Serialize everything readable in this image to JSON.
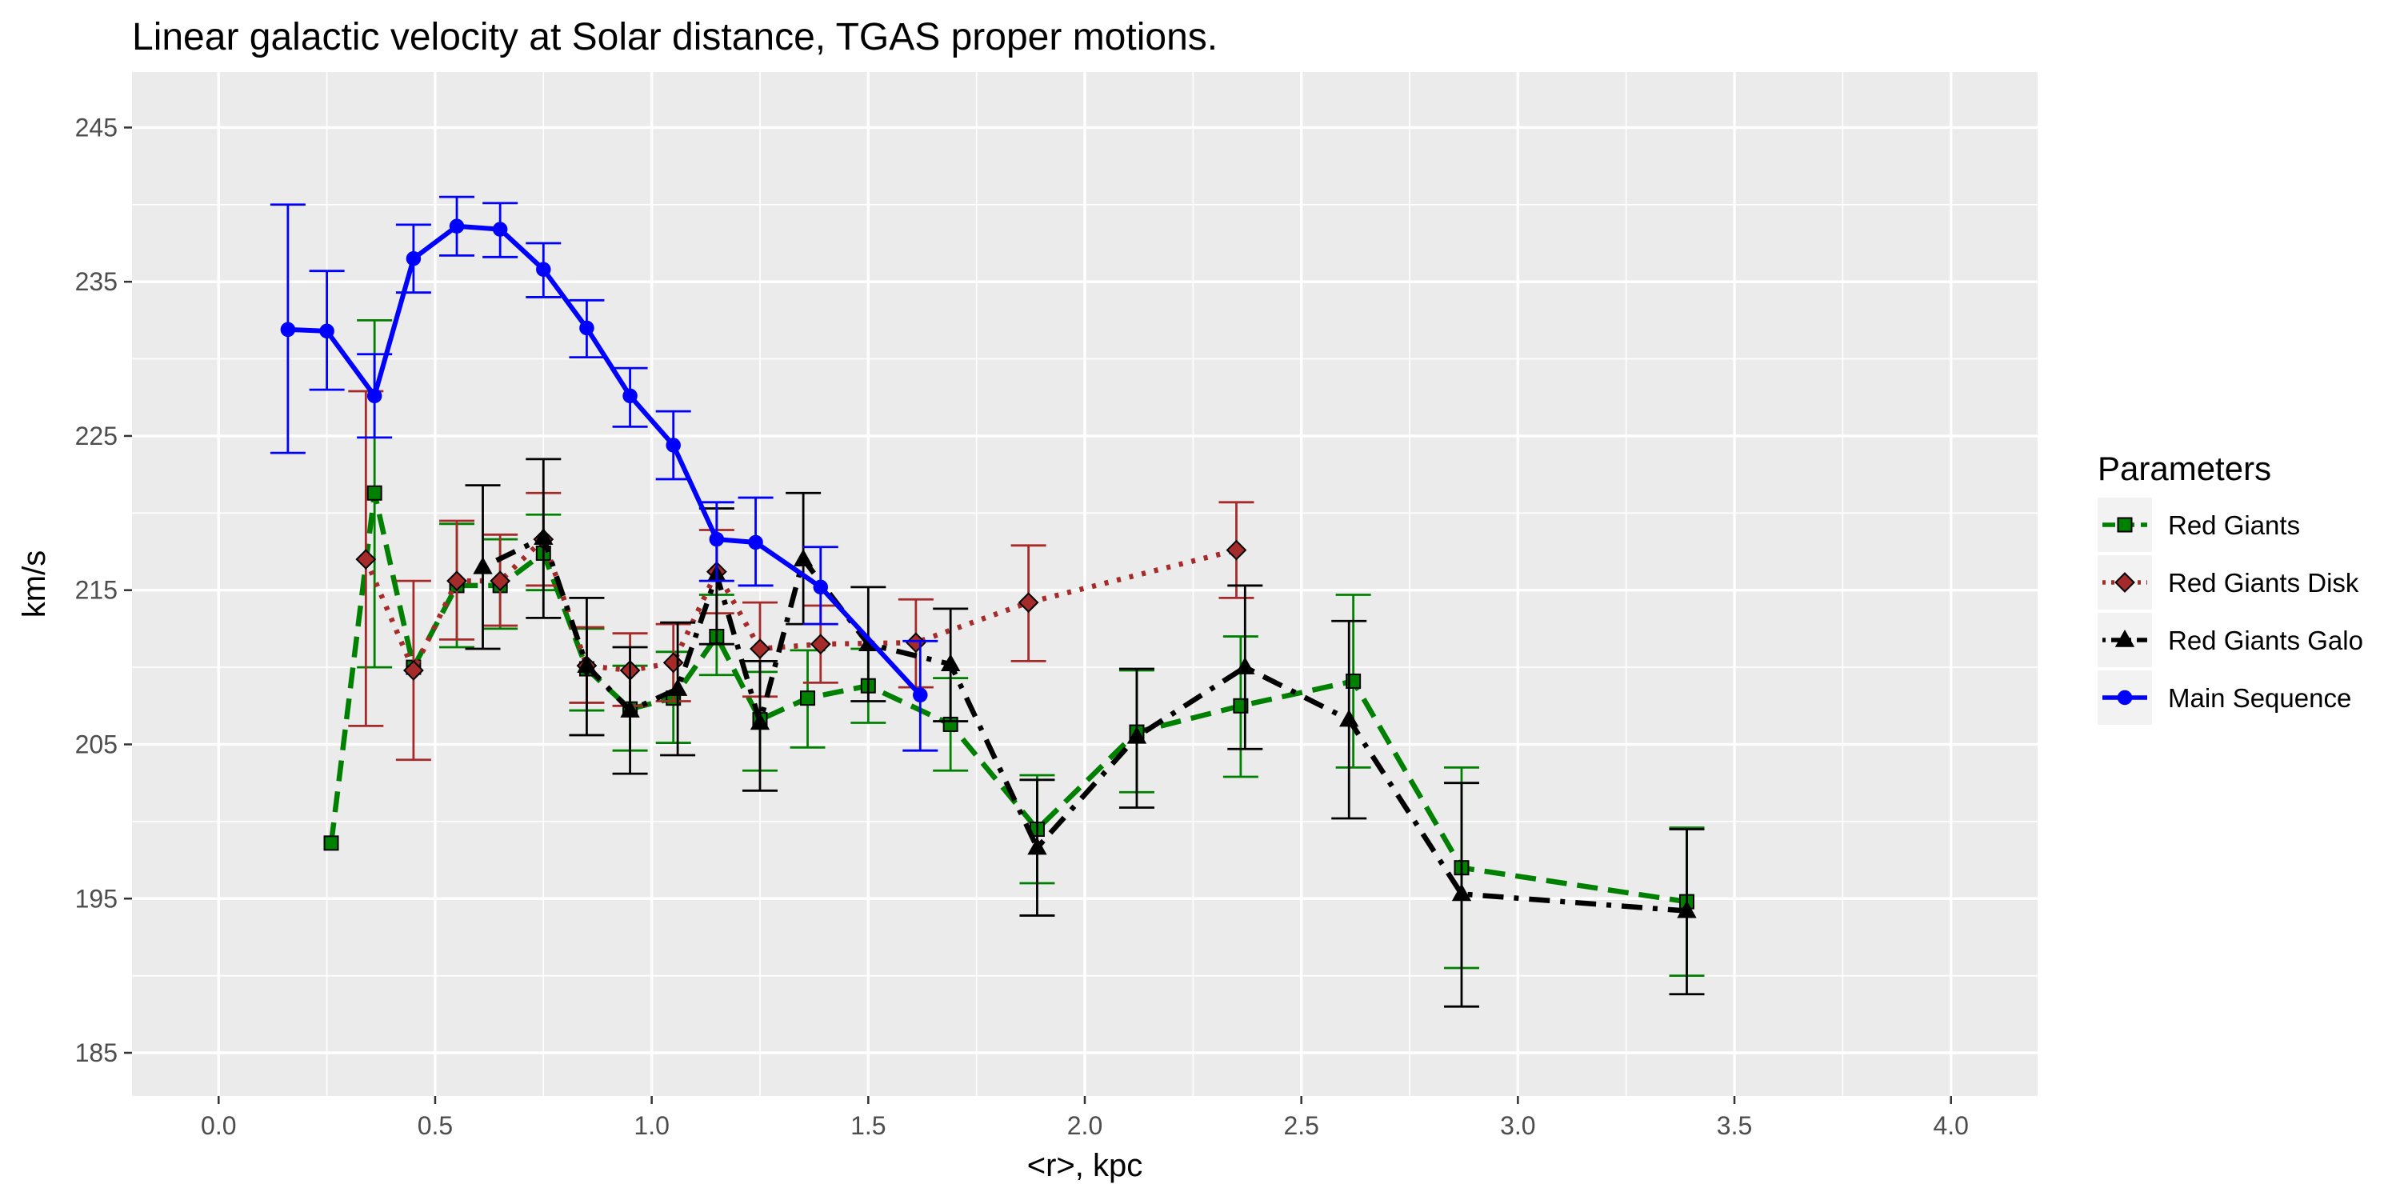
{
  "chart_data": {
    "type": "line",
    "title": "Linear galactic velocity at Solar distance,  TGAS  proper motions.",
    "xlabel": "<r>, kpc",
    "ylabel": "km/s",
    "xlim": [
      -0.2,
      4.2
    ],
    "ylim": [
      182.2,
      248.6
    ],
    "xticks": [
      0.0,
      0.5,
      1.0,
      1.5,
      2.0,
      2.5,
      3.0,
      3.5,
      4.0
    ],
    "xtick_labels": [
      "0.0",
      "0.5",
      "1.0",
      "1.5",
      "2.0",
      "2.5",
      "3.0",
      "3.5",
      "4.0"
    ],
    "yticks": [
      185,
      195,
      205,
      215,
      225,
      235,
      245
    ],
    "ytick_labels": [
      "185",
      "195",
      "205",
      "215",
      "225",
      "235",
      "245"
    ],
    "grid": true,
    "background": "#ebebeb",
    "legend": {
      "title": "Parameters",
      "position": "right"
    },
    "series": [
      {
        "name": "Red Giants",
        "color": "#008000",
        "linestyle": "dashed",
        "marker": "square",
        "points": [
          {
            "x": 0.26,
            "y": 198.6,
            "lo": 198.6,
            "hi": 198.6
          },
          {
            "x": 0.36,
            "y": 221.3,
            "lo": 210.0,
            "hi": 232.5
          },
          {
            "x": 0.45,
            "y": 210.0,
            "lo": 210.0,
            "hi": 210.0
          },
          {
            "x": 0.55,
            "y": 215.3,
            "lo": 211.3,
            "hi": 219.3
          },
          {
            "x": 0.65,
            "y": 215.3,
            "lo": 212.5,
            "hi": 218.3
          },
          {
            "x": 0.75,
            "y": 217.4,
            "lo": 215.0,
            "hi": 219.9
          },
          {
            "x": 0.85,
            "y": 209.9,
            "lo": 207.2,
            "hi": 212.5
          },
          {
            "x": 0.95,
            "y": 207.3,
            "lo": 204.6,
            "hi": 210.1
          },
          {
            "x": 1.05,
            "y": 208.0,
            "lo": 205.1,
            "hi": 211.0
          },
          {
            "x": 1.15,
            "y": 212.0,
            "lo": 209.5,
            "hi": 214.7
          },
          {
            "x": 1.25,
            "y": 206.6,
            "lo": 203.3,
            "hi": 209.7
          },
          {
            "x": 1.36,
            "y": 208.0,
            "lo": 204.8,
            "hi": 211.1
          },
          {
            "x": 1.5,
            "y": 208.8,
            "lo": 206.4,
            "hi": 211.2
          },
          {
            "x": 1.69,
            "y": 206.3,
            "lo": 203.3,
            "hi": 209.3
          },
          {
            "x": 1.89,
            "y": 199.5,
            "lo": 196.0,
            "hi": 203.0
          },
          {
            "x": 2.12,
            "y": 205.8,
            "lo": 201.9,
            "hi": 209.8
          },
          {
            "x": 2.36,
            "y": 207.5,
            "lo": 202.9,
            "hi": 212.0
          },
          {
            "x": 2.62,
            "y": 209.1,
            "lo": 203.5,
            "hi": 214.7
          },
          {
            "x": 2.87,
            "y": 197.0,
            "lo": 190.5,
            "hi": 203.5
          },
          {
            "x": 3.39,
            "y": 194.8,
            "lo": 190.0,
            "hi": 199.6
          }
        ]
      },
      {
        "name": "Red Giants Disk",
        "color": "#a52a2a",
        "linestyle": "dotted",
        "marker": "diamond",
        "points": [
          {
            "x": 0.34,
            "y": 217.0,
            "lo": 206.2,
            "hi": 227.9
          },
          {
            "x": 0.45,
            "y": 209.8,
            "lo": 204.0,
            "hi": 215.6
          },
          {
            "x": 0.55,
            "y": 215.6,
            "lo": 211.8,
            "hi": 219.5
          },
          {
            "x": 0.65,
            "y": 215.6,
            "lo": 212.7,
            "hi": 218.6
          },
          {
            "x": 0.75,
            "y": 218.3,
            "lo": 215.3,
            "hi": 221.3
          },
          {
            "x": 0.85,
            "y": 210.1,
            "lo": 207.7,
            "hi": 212.6
          },
          {
            "x": 0.95,
            "y": 209.8,
            "lo": 207.5,
            "hi": 212.2
          },
          {
            "x": 1.05,
            "y": 210.3,
            "lo": 207.8,
            "hi": 212.8
          },
          {
            "x": 1.15,
            "y": 216.2,
            "lo": 213.5,
            "hi": 218.9
          },
          {
            "x": 1.25,
            "y": 211.2,
            "lo": 208.1,
            "hi": 214.2
          },
          {
            "x": 1.39,
            "y": 211.5,
            "lo": 209.0,
            "hi": 214.0
          },
          {
            "x": 1.61,
            "y": 211.6,
            "lo": 208.7,
            "hi": 214.4
          },
          {
            "x": 1.87,
            "y": 214.2,
            "lo": 210.4,
            "hi": 217.9
          },
          {
            "x": 2.35,
            "y": 217.6,
            "lo": 214.5,
            "hi": 220.7
          }
        ]
      },
      {
        "name": "Red Giants Galo",
        "color": "#000000",
        "linestyle": "dotdash",
        "marker": "triangle",
        "points": [
          {
            "x": 0.61,
            "y": 216.5,
            "lo": 211.2,
            "hi": 221.8
          },
          {
            "x": 0.75,
            "y": 218.4,
            "lo": 213.2,
            "hi": 223.5
          },
          {
            "x": 0.85,
            "y": 210.1,
            "lo": 205.6,
            "hi": 214.5
          },
          {
            "x": 0.95,
            "y": 207.2,
            "lo": 203.1,
            "hi": 211.3
          },
          {
            "x": 1.06,
            "y": 208.6,
            "lo": 204.3,
            "hi": 212.9
          },
          {
            "x": 1.15,
            "y": 216.0,
            "lo": 211.5,
            "hi": 220.3
          },
          {
            "x": 1.25,
            "y": 206.4,
            "lo": 202.0,
            "hi": 210.4
          },
          {
            "x": 1.35,
            "y": 217.0,
            "lo": 212.8,
            "hi": 221.3
          },
          {
            "x": 1.5,
            "y": 211.5,
            "lo": 207.8,
            "hi": 215.2
          },
          {
            "x": 1.69,
            "y": 210.2,
            "lo": 206.5,
            "hi": 213.8
          },
          {
            "x": 1.89,
            "y": 198.3,
            "lo": 193.9,
            "hi": 202.7
          },
          {
            "x": 2.12,
            "y": 205.5,
            "lo": 200.9,
            "hi": 209.9
          },
          {
            "x": 2.37,
            "y": 210.0,
            "lo": 204.7,
            "hi": 215.3
          },
          {
            "x": 2.61,
            "y": 206.6,
            "lo": 200.2,
            "hi": 213.0
          },
          {
            "x": 2.87,
            "y": 195.3,
            "lo": 188.0,
            "hi": 202.5
          },
          {
            "x": 3.39,
            "y": 194.2,
            "lo": 188.8,
            "hi": 199.5
          }
        ]
      },
      {
        "name": "Main Sequence",
        "color": "#0000ff",
        "linestyle": "solid",
        "marker": "circle",
        "points": [
          {
            "x": 0.16,
            "y": 231.9,
            "lo": 223.9,
            "hi": 240.0
          },
          {
            "x": 0.25,
            "y": 231.8,
            "lo": 228.0,
            "hi": 235.7
          },
          {
            "x": 0.36,
            "y": 227.6,
            "lo": 224.9,
            "hi": 230.3
          },
          {
            "x": 0.45,
            "y": 236.5,
            "lo": 234.3,
            "hi": 238.7
          },
          {
            "x": 0.55,
            "y": 238.6,
            "lo": 236.7,
            "hi": 240.5
          },
          {
            "x": 0.65,
            "y": 238.4,
            "lo": 236.6,
            "hi": 240.1
          },
          {
            "x": 0.75,
            "y": 235.8,
            "lo": 234.0,
            "hi": 237.5
          },
          {
            "x": 0.85,
            "y": 232.0,
            "lo": 230.1,
            "hi": 233.8
          },
          {
            "x": 0.95,
            "y": 227.6,
            "lo": 225.6,
            "hi": 229.4
          },
          {
            "x": 1.05,
            "y": 224.4,
            "lo": 222.2,
            "hi": 226.6
          },
          {
            "x": 1.15,
            "y": 218.3,
            "lo": 215.6,
            "hi": 220.7
          },
          {
            "x": 1.24,
            "y": 218.1,
            "lo": 215.3,
            "hi": 221.0
          },
          {
            "x": 1.39,
            "y": 215.2,
            "lo": 212.8,
            "hi": 217.8
          },
          {
            "x": 1.62,
            "y": 208.2,
            "lo": 204.6,
            "hi": 211.7
          }
        ]
      }
    ]
  }
}
